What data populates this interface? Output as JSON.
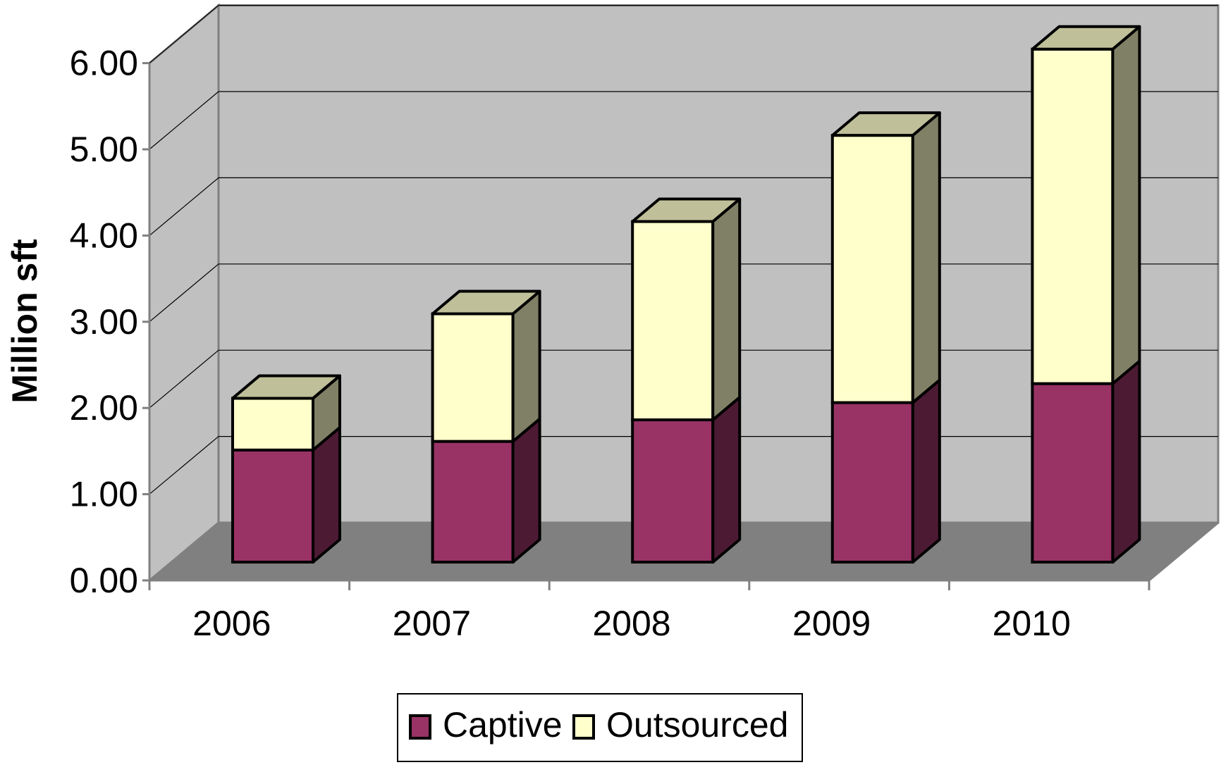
{
  "chart_data": {
    "type": "bar",
    "stacked": true,
    "three_d": true,
    "title": "",
    "xlabel": "",
    "ylabel": "Million sft",
    "ylim": [
      0,
      6
    ],
    "yticks": [
      "0.00",
      "1.00",
      "2.00",
      "3.00",
      "4.00",
      "5.00",
      "6.00"
    ],
    "categories": [
      "2006",
      "2007",
      "2008",
      "2009",
      "2010"
    ],
    "series": [
      {
        "name": "Captive",
        "values": [
          1.3,
          1.4,
          1.65,
          1.85,
          2.07
        ],
        "color": "#993366"
      },
      {
        "name": "Outsourced",
        "values": [
          0.6,
          1.48,
          2.3,
          3.1,
          3.88
        ],
        "color": "#FFFFCC"
      }
    ],
    "grid": true,
    "wall_color": "#C0C0C0",
    "floor_color": "#808080",
    "legend_position": "bottom"
  }
}
